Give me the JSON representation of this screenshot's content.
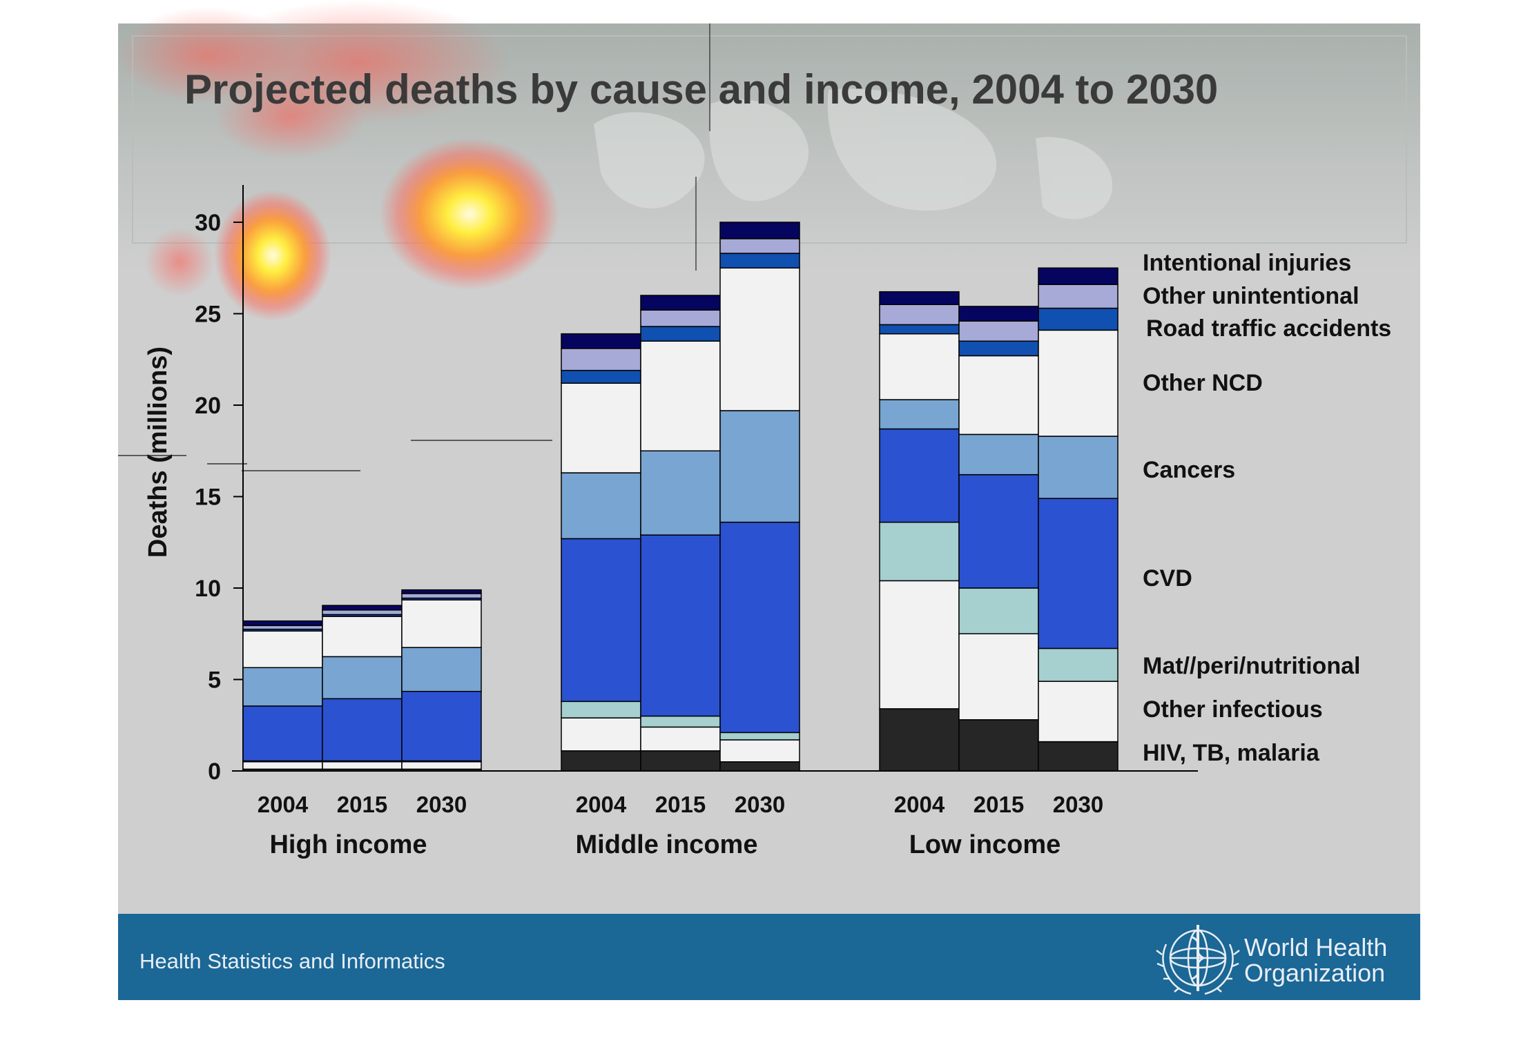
{
  "slide": {
    "title": "Projected deaths by cause and income, 2004 to 2030",
    "footer_text": "Health Statistics and Informatics",
    "logo_line1": "World Health",
    "logo_line2": "Organization",
    "colors": {
      "background": "#cfcfcf",
      "footer": "#1b6796",
      "title": "#3a3a3a"
    },
    "logo_icon": "who-emblem-icon"
  },
  "chart_data": {
    "type": "bar",
    "stacked": true,
    "title": "Projected deaths by cause and income, 2004 to 2030",
    "ylabel": "Deaths (millions)",
    "ylim": [
      0,
      30
    ],
    "yticks": [
      0,
      5,
      10,
      15,
      20,
      25,
      30
    ],
    "grid": false,
    "legend_position": "right",
    "groups": [
      {
        "label": "High income",
        "categories": [
          "2004",
          "2015",
          "2030"
        ]
      },
      {
        "label": "Middle income",
        "categories": [
          "2004",
          "2015",
          "2030"
        ]
      },
      {
        "label": "Low income",
        "categories": [
          "2004",
          "2015",
          "2030"
        ]
      }
    ],
    "series": [
      {
        "name": "HIV, TB, malaria",
        "color": "#262626",
        "values": [
          0.1,
          0.1,
          0.1,
          1.1,
          1.1,
          0.5,
          3.4,
          2.8,
          1.6
        ]
      },
      {
        "name": "Other infectious",
        "color": "#f2f2f2",
        "values": [
          0.4,
          0.4,
          0.4,
          1.8,
          1.3,
          1.2,
          7.0,
          4.7,
          3.3
        ]
      },
      {
        "name": "Mat//peri/nutritional",
        "color": "#a6cfcf",
        "values": [
          0.05,
          0.05,
          0.05,
          0.9,
          0.6,
          0.4,
          3.2,
          2.5,
          1.8
        ]
      },
      {
        "name": "CVD",
        "color": "#2b52d0",
        "values": [
          3.0,
          3.4,
          3.8,
          8.9,
          9.9,
          11.5,
          5.1,
          6.2,
          8.2
        ]
      },
      {
        "name": "Cancers",
        "color": "#78a5d1",
        "values": [
          2.1,
          2.3,
          2.4,
          3.6,
          4.6,
          6.1,
          1.6,
          2.2,
          3.4
        ]
      },
      {
        "name": "Other NCD",
        "color": "#f2f2f2",
        "values": [
          2.0,
          2.2,
          2.6,
          4.9,
          6.0,
          7.8,
          3.6,
          4.3,
          5.8
        ]
      },
      {
        "name": "Road traffic accidents",
        "color": "#1050b0",
        "values": [
          0.1,
          0.1,
          0.1,
          0.7,
          0.8,
          0.8,
          0.5,
          0.8,
          1.2
        ]
      },
      {
        "name": "Other unintentional",
        "color": "#a7a9d6",
        "values": [
          0.2,
          0.25,
          0.25,
          1.2,
          0.9,
          0.8,
          1.1,
          1.1,
          1.3
        ]
      },
      {
        "name": "Intentional injuries",
        "color": "#050560",
        "values": [
          0.25,
          0.25,
          0.2,
          0.8,
          0.8,
          0.9,
          0.7,
          0.8,
          0.9
        ]
      }
    ]
  }
}
